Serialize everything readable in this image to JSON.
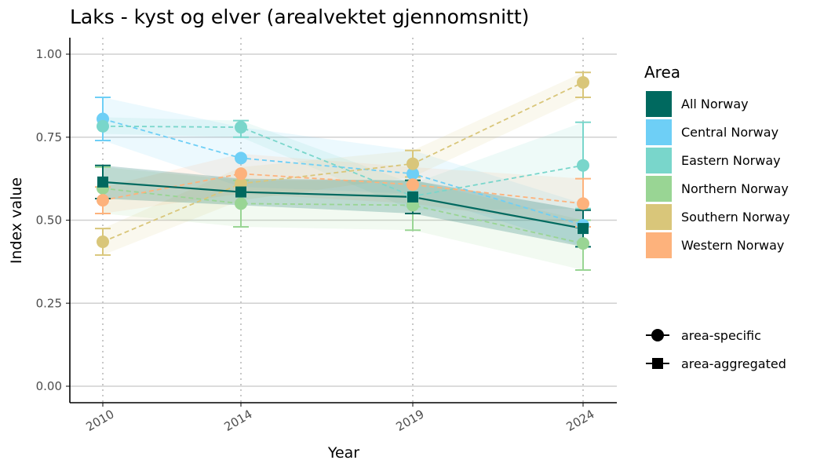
{
  "chart_data": {
    "type": "line",
    "title": "Laks - kyst og elver (arealvektet gjennomsnitt)",
    "xlabel": "Year",
    "ylabel": "Index value",
    "x": [
      2010,
      2014,
      2019,
      2024
    ],
    "x_tick_labels": [
      "2010",
      "2014",
      "2019",
      "2024"
    ],
    "ylim": [
      -0.05,
      1.05
    ],
    "y_ticks": [
      0.0,
      0.25,
      0.5,
      0.75,
      1.0
    ],
    "y_tick_labels": [
      "0.00",
      "0.25",
      "0.50",
      "0.75",
      "1.00"
    ],
    "grid": "horizontal major",
    "legend": {
      "title": "Area",
      "placement": "right",
      "shape_entries": [
        "area-specific",
        "area-aggregated"
      ]
    },
    "series": [
      {
        "name": "All Norway",
        "color": "#00695f",
        "kind": "aggregated",
        "values": [
          0.615,
          0.585,
          0.57,
          0.475
        ],
        "err_low": [
          0.565,
          null,
          0.52,
          0.42
        ],
        "err_high": [
          0.665,
          null,
          0.62,
          0.53
        ],
        "band_low": [
          0.565,
          0.545,
          0.52,
          0.42
        ],
        "band_high": [
          0.665,
          0.625,
          0.62,
          0.53
        ]
      },
      {
        "name": "Central Norway",
        "color": "#6ecff6",
        "kind": "specific",
        "values": [
          0.805,
          0.687,
          0.64,
          0.485
        ],
        "err_low": [
          0.74,
          null,
          null,
          null
        ],
        "err_high": [
          0.87,
          null,
          null,
          null
        ],
        "band_low": [
          0.74,
          0.6,
          0.58,
          0.42
        ],
        "band_high": [
          0.87,
          0.78,
          0.71,
          0.55
        ]
      },
      {
        "name": "Eastern Norway",
        "color": "#79d6cb",
        "kind": "specific",
        "values": [
          0.783,
          0.78,
          0.572,
          0.665
        ],
        "err_low": [
          null,
          0.75,
          null,
          0.535
        ],
        "err_high": [
          null,
          0.8,
          null,
          0.795
        ],
        "band_low": [
          0.76,
          0.75,
          0.53,
          0.535
        ],
        "band_high": [
          0.81,
          0.8,
          0.61,
          0.795
        ]
      },
      {
        "name": "Northern Norway",
        "color": "#99d594",
        "kind": "specific",
        "values": [
          0.596,
          0.55,
          0.545,
          0.43
        ],
        "err_low": [
          0.52,
          0.48,
          0.47,
          0.35
        ],
        "err_high": [
          0.66,
          0.62,
          0.62,
          0.5
        ],
        "band_low": [
          0.52,
          0.48,
          0.47,
          0.35
        ],
        "band_high": [
          0.66,
          0.62,
          0.62,
          0.5
        ]
      },
      {
        "name": "Southern Norway",
        "color": "#d9c67a",
        "kind": "specific",
        "values": [
          0.435,
          0.61,
          0.67,
          0.915
        ],
        "err_low": [
          0.395,
          null,
          0.63,
          0.87
        ],
        "err_high": [
          0.475,
          null,
          0.71,
          0.945
        ],
        "band_low": [
          0.395,
          0.56,
          0.63,
          0.87
        ],
        "band_high": [
          0.475,
          0.66,
          0.71,
          0.945
        ]
      },
      {
        "name": "Western Norway",
        "color": "#fdb27c",
        "kind": "specific",
        "values": [
          0.56,
          0.64,
          0.607,
          0.55
        ],
        "err_low": [
          0.52,
          null,
          null,
          0.48
        ],
        "err_high": [
          0.6,
          null,
          null,
          0.625
        ],
        "band_low": [
          0.52,
          0.58,
          0.55,
          0.48
        ],
        "band_high": [
          0.6,
          0.7,
          0.66,
          0.625
        ]
      }
    ]
  }
}
